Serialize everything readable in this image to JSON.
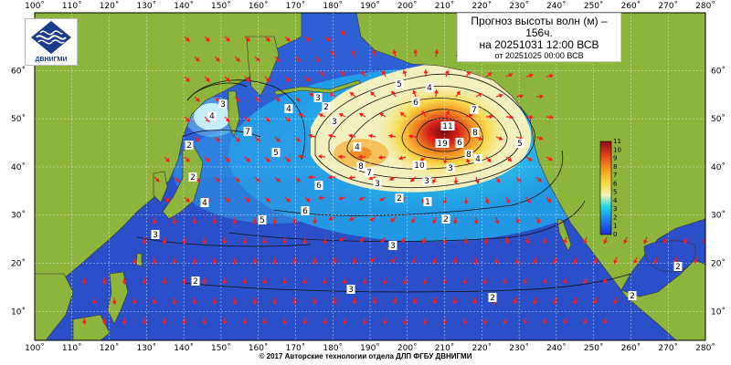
{
  "title": {
    "line1": "Прогноз высоты волн (м) –",
    "line2": "156ч.",
    "line3": "на 20251031 12:00 ВСВ",
    "line4": "от 20251025 00:00 ВСВ"
  },
  "logo": {
    "text": "ДВНИГМИ",
    "icon": "wave-emblem-icon"
  },
  "footer": "© 2017 Авторские технологии отдела ДЛП ФГБУ ДВНИГМИ",
  "axes": {
    "lon_labels": [
      "100˚",
      "110˚",
      "120˚",
      "130˚",
      "140˚",
      "150˚",
      "160˚",
      "170˚",
      "180˚",
      "190˚",
      "200˚",
      "210˚",
      "220˚",
      "230˚",
      "240˚",
      "250˚",
      "260˚",
      "270˚",
      "280˚"
    ],
    "lat_labels": [
      "60˚",
      "50˚",
      "40˚",
      "30˚",
      "20˚",
      "10˚"
    ],
    "lon_range": [
      100,
      280
    ],
    "lat_range": [
      4,
      72
    ]
  },
  "colorbar": {
    "labels": [
      "0",
      "1",
      "2",
      "3",
      "4",
      "5",
      "6",
      "7",
      "8",
      "9",
      "10",
      "11"
    ]
  },
  "contour_labels": [
    "11",
    "10",
    "9",
    "8",
    "7",
    "6",
    "5",
    "4",
    "3",
    "2",
    "3",
    "4",
    "5",
    "6",
    "7",
    "8",
    "4",
    "3",
    "2",
    "1",
    "2",
    "3",
    "4",
    "5",
    "6",
    "8",
    "9",
    "10",
    "7",
    "6",
    "5",
    "4",
    "3",
    "2",
    "3",
    "3",
    "2",
    "3",
    "2",
    "2",
    "4",
    "3",
    "2",
    "2"
  ],
  "colors": {
    "land": "#8db43b",
    "ocean_low": "#2d56c8",
    "high": "#d9201b"
  }
}
